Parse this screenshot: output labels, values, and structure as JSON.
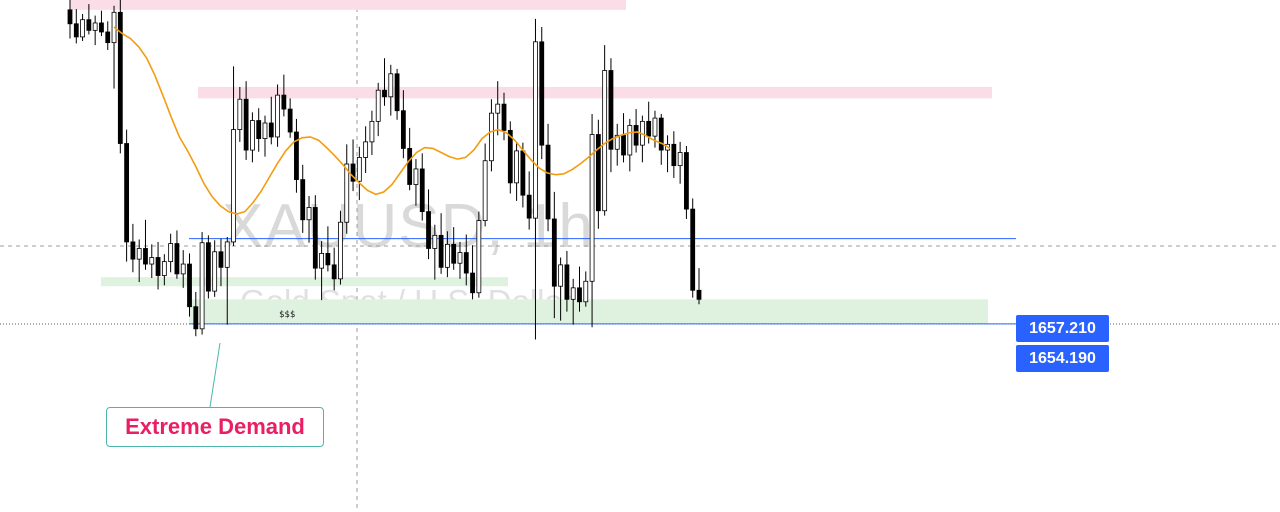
{
  "chart_data": {
    "type": "candlestick",
    "symbol_watermark": "XAUUSD, 1h",
    "description_watermark": "Gold Spot / U.S. Dollar",
    "ylim": [
      1649.8,
      1693.7
    ],
    "candles": [
      [
        1692.5,
        1694.2,
        1689.0,
        1690.8
      ],
      [
        1690.8,
        1692.6,
        1688.4,
        1689.2
      ],
      [
        1689.2,
        1692.0,
        1688.7,
        1691.3
      ],
      [
        1691.3,
        1693.2,
        1689.5,
        1690.0
      ],
      [
        1690.0,
        1691.8,
        1688.2,
        1690.9
      ],
      [
        1690.9,
        1692.4,
        1689.3,
        1689.8
      ],
      [
        1689.8,
        1691.1,
        1687.6,
        1688.5
      ],
      [
        1688.5,
        1693.0,
        1682.9,
        1692.2
      ],
      [
        1692.2,
        1694.0,
        1675.0,
        1676.2
      ],
      [
        1676.2,
        1677.9,
        1661.8,
        1664.2
      ],
      [
        1664.2,
        1666.4,
        1660.5,
        1662.1
      ],
      [
        1662.1,
        1664.5,
        1659.3,
        1663.4
      ],
      [
        1663.4,
        1666.9,
        1660.8,
        1661.5
      ],
      [
        1661.5,
        1663.9,
        1659.8,
        1662.3
      ],
      [
        1662.3,
        1664.2,
        1658.4,
        1660.1
      ],
      [
        1660.1,
        1662.7,
        1658.9,
        1661.8
      ],
      [
        1661.8,
        1665.2,
        1660.5,
        1664.0
      ],
      [
        1664.0,
        1665.6,
        1659.7,
        1660.3
      ],
      [
        1660.3,
        1663.2,
        1658.6,
        1661.5
      ],
      [
        1661.5,
        1662.8,
        1655.1,
        1656.3
      ],
      [
        1656.3,
        1658.1,
        1652.7,
        1653.6
      ],
      [
        1653.6,
        1665.4,
        1652.9,
        1664.1
      ],
      [
        1664.1,
        1665.0,
        1657.3,
        1658.2
      ],
      [
        1658.2,
        1664.4,
        1657.5,
        1663.0
      ],
      [
        1663.0,
        1664.6,
        1658.8,
        1661.1
      ],
      [
        1661.1,
        1664.8,
        1654.1,
        1664.2
      ],
      [
        1664.2,
        1685.6,
        1663.7,
        1677.9
      ],
      [
        1677.9,
        1683.1,
        1676.4,
        1681.6
      ],
      [
        1681.6,
        1683.8,
        1674.2,
        1675.4
      ],
      [
        1675.4,
        1680.0,
        1673.9,
        1679.0
      ],
      [
        1679.0,
        1680.5,
        1675.2,
        1676.8
      ],
      [
        1676.8,
        1679.6,
        1674.6,
        1678.7
      ],
      [
        1678.7,
        1681.9,
        1676.1,
        1677.0
      ],
      [
        1677.0,
        1683.4,
        1675.8,
        1682.1
      ],
      [
        1682.1,
        1684.6,
        1679.5,
        1680.4
      ],
      [
        1680.4,
        1681.7,
        1676.9,
        1677.6
      ],
      [
        1677.6,
        1679.2,
        1670.2,
        1671.8
      ],
      [
        1671.8,
        1673.6,
        1665.3,
        1666.9
      ],
      [
        1666.9,
        1669.8,
        1664.1,
        1668.4
      ],
      [
        1668.4,
        1669.9,
        1659.6,
        1661.0
      ],
      [
        1661.0,
        1664.3,
        1657.1,
        1662.8
      ],
      [
        1662.8,
        1666.1,
        1660.6,
        1661.4
      ],
      [
        1661.4,
        1663.5,
        1658.3,
        1659.7
      ],
      [
        1659.7,
        1668.0,
        1659.0,
        1666.6
      ],
      [
        1666.6,
        1676.1,
        1665.2,
        1673.7
      ],
      [
        1673.7,
        1676.7,
        1670.4,
        1671.6
      ],
      [
        1671.6,
        1675.8,
        1669.3,
        1674.5
      ],
      [
        1674.5,
        1678.3,
        1672.6,
        1676.4
      ],
      [
        1676.4,
        1680.2,
        1674.8,
        1678.9
      ],
      [
        1678.9,
        1683.6,
        1677.1,
        1682.7
      ],
      [
        1682.7,
        1686.6,
        1680.8,
        1681.9
      ],
      [
        1681.9,
        1685.8,
        1679.6,
        1684.7
      ],
      [
        1684.7,
        1685.3,
        1679.1,
        1680.2
      ],
      [
        1680.2,
        1682.7,
        1674.4,
        1675.6
      ],
      [
        1675.6,
        1678.1,
        1670.5,
        1671.2
      ],
      [
        1671.2,
        1674.3,
        1668.6,
        1673.1
      ],
      [
        1673.1,
        1675.0,
        1666.8,
        1667.9
      ],
      [
        1667.9,
        1670.6,
        1662.1,
        1663.4
      ],
      [
        1663.4,
        1666.3,
        1659.6,
        1665.0
      ],
      [
        1665.0,
        1667.7,
        1660.3,
        1661.1
      ],
      [
        1661.1,
        1665.5,
        1659.9,
        1663.9
      ],
      [
        1663.9,
        1666.0,
        1660.8,
        1661.6
      ],
      [
        1661.6,
        1664.2,
        1659.7,
        1662.9
      ],
      [
        1662.9,
        1665.1,
        1658.9,
        1660.4
      ],
      [
        1660.4,
        1663.8,
        1657.2,
        1658.0
      ],
      [
        1658.0,
        1667.9,
        1657.4,
        1666.8
      ],
      [
        1666.8,
        1676.2,
        1666.1,
        1674.1
      ],
      [
        1674.1,
        1681.6,
        1672.8,
        1679.9
      ],
      [
        1679.9,
        1683.8,
        1677.2,
        1681.0
      ],
      [
        1681.0,
        1682.4,
        1676.6,
        1677.8
      ],
      [
        1677.8,
        1678.9,
        1670.1,
        1671.4
      ],
      [
        1671.4,
        1676.4,
        1669.2,
        1675.3
      ],
      [
        1675.3,
        1676.3,
        1668.4,
        1669.9
      ],
      [
        1669.9,
        1672.8,
        1665.7,
        1667.1
      ],
      [
        1667.1,
        1691.4,
        1652.3,
        1688.6
      ],
      [
        1688.6,
        1690.4,
        1674.3,
        1676.0
      ],
      [
        1676.0,
        1678.6,
        1665.5,
        1667.0
      ],
      [
        1667.0,
        1670.3,
        1654.9,
        1658.8
      ],
      [
        1658.8,
        1662.3,
        1654.6,
        1661.4
      ],
      [
        1661.4,
        1663.1,
        1655.7,
        1657.2
      ],
      [
        1657.2,
        1659.7,
        1654.1,
        1658.6
      ],
      [
        1658.6,
        1661.2,
        1655.7,
        1656.9
      ],
      [
        1656.9,
        1660.6,
        1656.3,
        1659.4
      ],
      [
        1659.4,
        1679.8,
        1653.8,
        1677.3
      ],
      [
        1677.3,
        1679.1,
        1665.8,
        1668.0
      ],
      [
        1668.0,
        1688.2,
        1667.4,
        1685.1
      ],
      [
        1685.1,
        1686.6,
        1672.7,
        1675.5
      ],
      [
        1675.5,
        1678.6,
        1673.5,
        1677.2
      ],
      [
        1677.2,
        1679.9,
        1673.9,
        1674.8
      ],
      [
        1674.8,
        1679.2,
        1672.8,
        1678.4
      ],
      [
        1678.4,
        1680.4,
        1675.1,
        1676.0
      ],
      [
        1676.0,
        1679.6,
        1673.9,
        1678.9
      ],
      [
        1678.9,
        1681.3,
        1676.2,
        1677.1
      ],
      [
        1677.1,
        1680.2,
        1675.7,
        1679.3
      ],
      [
        1679.3,
        1679.8,
        1673.6,
        1675.4
      ],
      [
        1675.4,
        1677.2,
        1672.7,
        1676.1
      ],
      [
        1676.1,
        1677.7,
        1672.0,
        1673.5
      ],
      [
        1673.5,
        1676.4,
        1671.3,
        1675.1
      ],
      [
        1675.1,
        1675.9,
        1667.0,
        1668.2
      ],
      [
        1668.2,
        1669.5,
        1657.4,
        1658.3
      ],
      [
        1658.3,
        1661.0,
        1656.6,
        1657.2
      ]
    ],
    "moving_average": [
      1690.4,
      1689.6,
      1689.0,
      1688.0,
      1686.6,
      1684.5,
      1682.0,
      1679.4,
      1677.0,
      1675.3,
      1673.4,
      1671.3,
      1669.7,
      1668.6,
      1667.9,
      1667.6,
      1667.9,
      1669.0,
      1670.4,
      1672.1,
      1673.8,
      1675.3,
      1676.4,
      1676.9,
      1677.0,
      1676.6,
      1675.7,
      1674.7,
      1673.6,
      1672.4,
      1671.4,
      1670.5,
      1670.0,
      1670.3,
      1671.2,
      1672.6,
      1674.0,
      1675.1,
      1675.7,
      1675.6,
      1675.1,
      1674.6,
      1674.3,
      1674.5,
      1675.4,
      1676.8,
      1677.6,
      1677.9,
      1677.5,
      1676.6,
      1675.4,
      1674.2,
      1673.2,
      1672.6,
      1672.4,
      1672.5,
      1673.0,
      1673.7,
      1674.5,
      1675.4,
      1676.2,
      1676.8,
      1677.2,
      1677.5,
      1677.6,
      1677.2,
      1676.6,
      1676.2,
      1675.6
    ],
    "ma_line_color": "#f39c12",
    "current_price_lines": [
      1664.6,
      1657.2
    ],
    "zones": {
      "supply_zones": [
        {
          "color": "#fadde6",
          "price_top": 1693.9,
          "price_bottom": 1692.5
        },
        {
          "color": "#fadde6",
          "price_top": 1683.1,
          "price_bottom": 1681.7
        }
      ],
      "demand_zones": [
        {
          "color": "#dff1df",
          "price_top": 1659.9,
          "price_bottom": 1658.8
        },
        {
          "color": "#dff1df",
          "price_top": 1657.2,
          "price_bottom": 1654.2
        }
      ]
    },
    "liquidity_label": "$$$",
    "price_labels": [
      "1657.210",
      "1654.190"
    ],
    "candle_up_color": "#ffffff",
    "candle_down_color": "#000000",
    "candle_wick_color": "#000000"
  },
  "annotation": {
    "label": "Extreme Demand",
    "text_color": "#e91e63",
    "border_color": "#4db6ac"
  },
  "price_axis_tags": [
    {
      "value": "1657.210",
      "color": "#2962ff"
    },
    {
      "value": "1654.190",
      "color": "#2962ff"
    }
  ]
}
